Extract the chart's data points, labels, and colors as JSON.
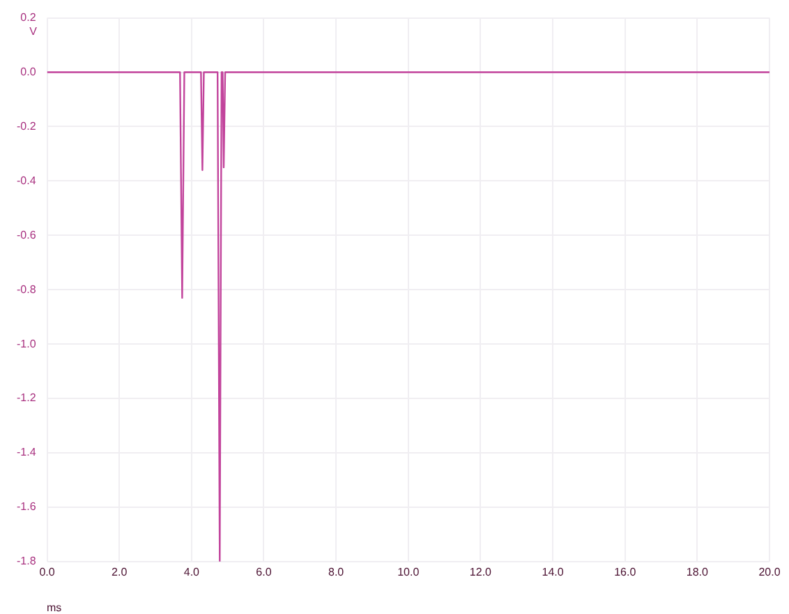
{
  "chart_data": {
    "type": "line",
    "xlabel": "ms",
    "ylabel": "V",
    "xlim": [
      0,
      20
    ],
    "ylim": [
      -1.8,
      0.2
    ],
    "xticks": [
      {
        "value": 0,
        "label": "0.0"
      },
      {
        "value": 2,
        "label": "2.0"
      },
      {
        "value": 4,
        "label": "4.0"
      },
      {
        "value": 6,
        "label": "6.0"
      },
      {
        "value": 8,
        "label": "8.0"
      },
      {
        "value": 10,
        "label": "10.0"
      },
      {
        "value": 12,
        "label": "12.0"
      },
      {
        "value": 14,
        "label": "14.0"
      },
      {
        "value": 16,
        "label": "16.0"
      },
      {
        "value": 18,
        "label": "18.0"
      },
      {
        "value": 20,
        "label": "20.0"
      }
    ],
    "yticks": [
      {
        "value": 0.2,
        "label": "0.2"
      },
      {
        "value": 0,
        "label": "0.0"
      },
      {
        "value": -0.2,
        "label": "-0.2"
      },
      {
        "value": -0.4,
        "label": "-0.4"
      },
      {
        "value": -0.6,
        "label": "-0.6"
      },
      {
        "value": -0.8,
        "label": "-0.8"
      },
      {
        "value": -1,
        "label": "-1.0"
      },
      {
        "value": -1.2,
        "label": "-1.2"
      },
      {
        "value": -1.4,
        "label": "-1.4"
      },
      {
        "value": -1.6,
        "label": "-1.6"
      },
      {
        "value": -1.8,
        "label": "-1.8"
      }
    ],
    "grid": true,
    "legend": false,
    "marker": "none",
    "line_style": "solid",
    "series": [
      {
        "color": "#c2449c",
        "x": [
          0,
          3.68,
          3.74,
          3.8,
          4.26,
          4.3,
          4.34,
          4.72,
          4.78,
          4.83,
          4.86,
          4.89,
          4.93,
          20
        ],
        "values": [
          0,
          0,
          -0.83,
          0,
          0,
          -0.36,
          0,
          0,
          -1.8,
          0,
          0,
          -0.35,
          0,
          0
        ]
      }
    ]
  }
}
